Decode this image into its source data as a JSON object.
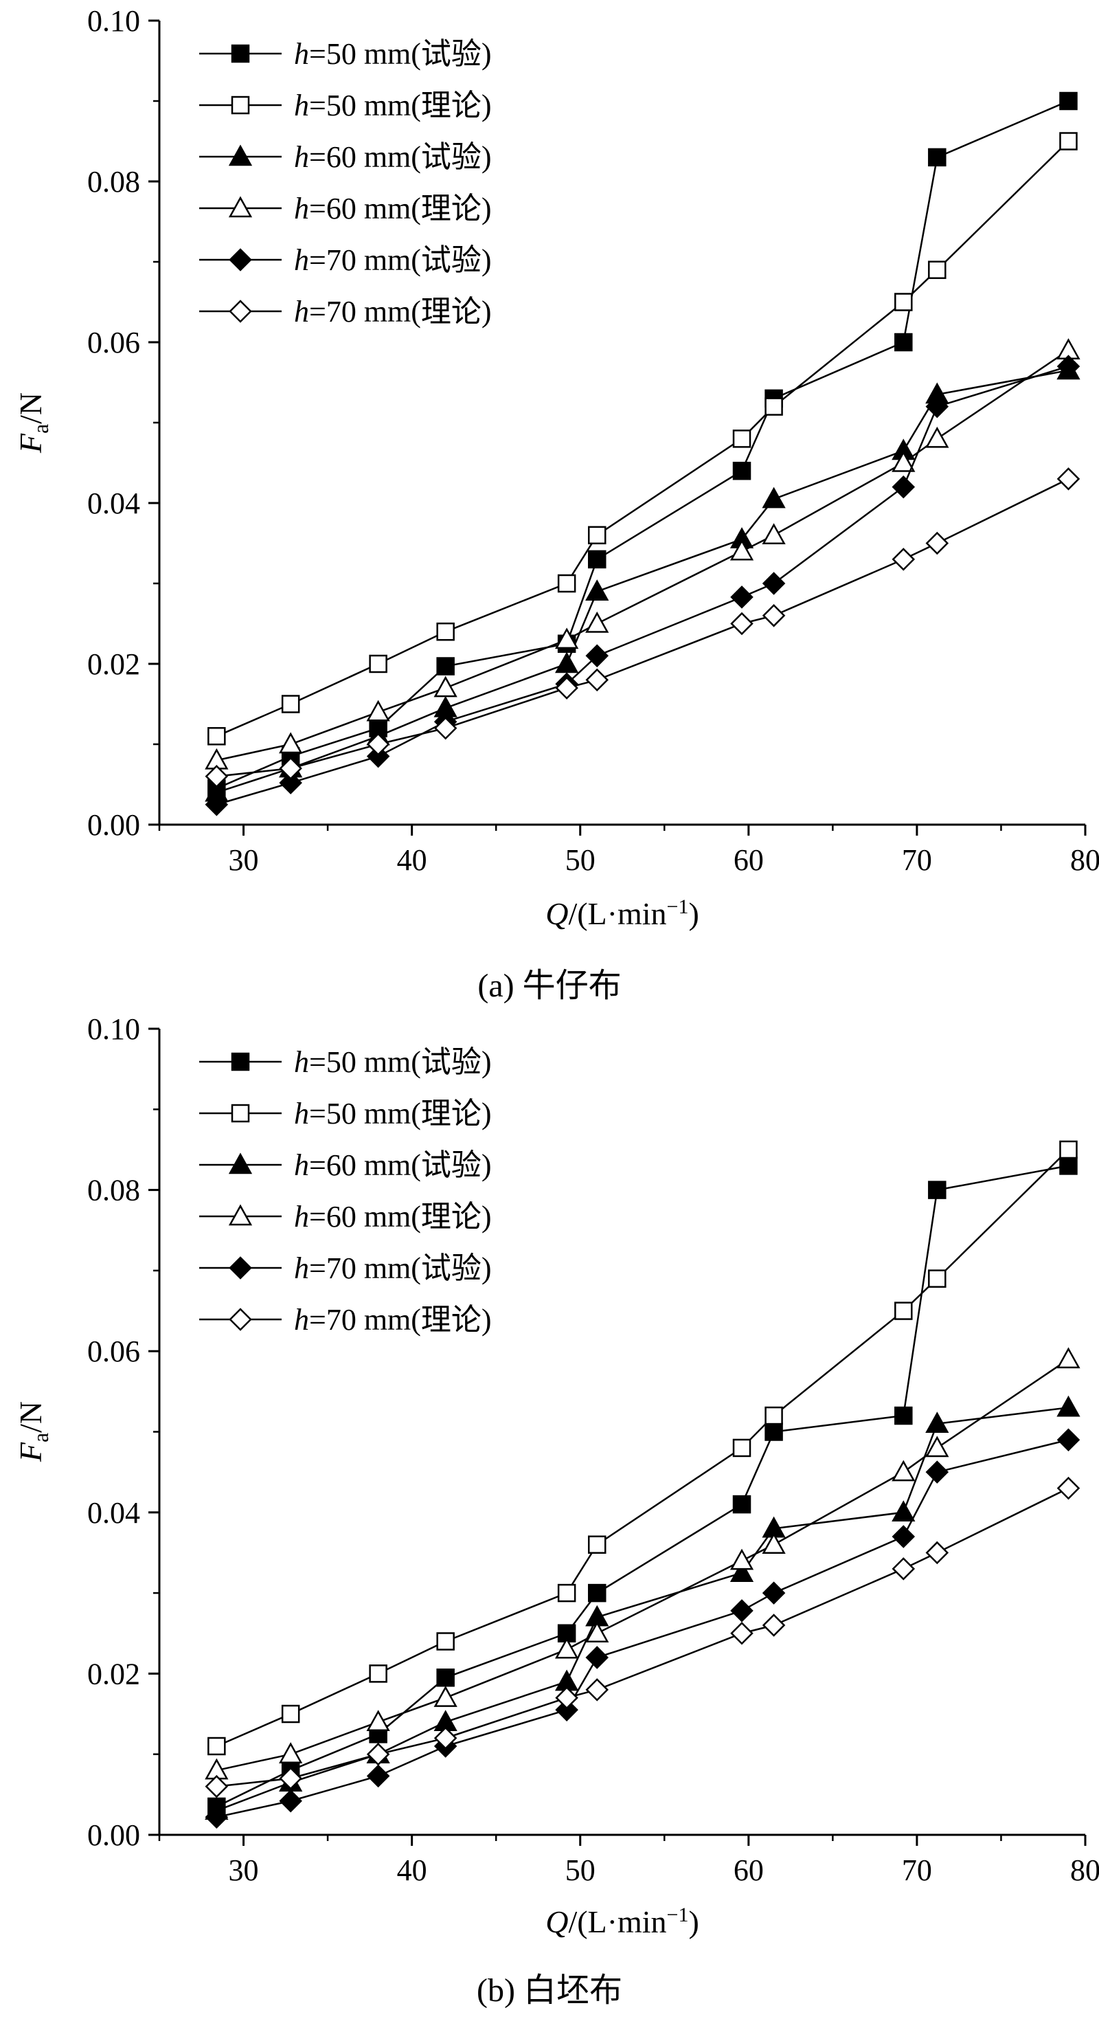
{
  "chart_data": [
    {
      "type": "line",
      "caption": "(a)  牛仔布",
      "xlabel": "Q/(L·min⁻¹)",
      "xlabel_parts": {
        "var": "Q",
        "unit_open": "/(L·min",
        "exp": "−1",
        "unit_close": ")"
      },
      "ylabel": "Fa/N",
      "ylabel_parts": {
        "var": "F",
        "sub": "a",
        "unit": "/N"
      },
      "xlim": [
        25,
        80
      ],
      "ylim": [
        0,
        0.1
      ],
      "xticks": [
        "30",
        "40",
        "50",
        "60",
        "70",
        "80"
      ],
      "xtick_values": [
        30,
        40,
        50,
        60,
        70,
        80
      ],
      "yticks": [
        "0.00",
        "0.02",
        "0.04",
        "0.06",
        "0.08",
        "0.10"
      ],
      "ytick_values": [
        0,
        0.02,
        0.04,
        0.06,
        0.08,
        0.1
      ],
      "legend_position": "top-left",
      "series": [
        {
          "name": "h=50 mm(试验)",
          "h_label": "h",
          "rest_label": "=50 mm(试验)",
          "marker": "square",
          "filled": true,
          "x": [
            28.4,
            32.8,
            38.0,
            42.0,
            49.2,
            51.0,
            59.6,
            61.5,
            69.2,
            71.2,
            79.0
          ],
          "y": [
            0.0045,
            0.0085,
            0.012,
            0.0197,
            0.0225,
            0.033,
            0.044,
            0.053,
            0.06,
            0.083,
            0.09
          ]
        },
        {
          "name": "h=50 mm(理论)",
          "h_label": "h",
          "rest_label": "=50 mm(理论)",
          "marker": "square",
          "filled": false,
          "x": [
            28.4,
            32.8,
            38.0,
            42.0,
            49.2,
            51.0,
            59.6,
            61.5,
            69.2,
            71.2,
            79.0
          ],
          "y": [
            0.011,
            0.015,
            0.02,
            0.024,
            0.03,
            0.036,
            0.048,
            0.052,
            0.065,
            0.069,
            0.085
          ]
        },
        {
          "name": "h=60 mm(试验)",
          "h_label": "h",
          "rest_label": "=60 mm(试验)",
          "marker": "triangle",
          "filled": true,
          "x": [
            28.4,
            32.8,
            38.0,
            42.0,
            49.2,
            51.0,
            59.6,
            61.5,
            69.2,
            71.2,
            79.0
          ],
          "y": [
            0.004,
            0.007,
            0.011,
            0.0145,
            0.02,
            0.029,
            0.0355,
            0.0405,
            0.0465,
            0.0535,
            0.0565
          ]
        },
        {
          "name": "h=60 mm(理论)",
          "h_label": "h",
          "rest_label": "=60 mm(理论)",
          "marker": "triangle",
          "filled": false,
          "x": [
            28.4,
            32.8,
            38.0,
            42.0,
            49.2,
            51.0,
            59.6,
            61.5,
            69.2,
            71.2,
            79.0
          ],
          "y": [
            0.008,
            0.01,
            0.014,
            0.017,
            0.023,
            0.025,
            0.034,
            0.036,
            0.045,
            0.048,
            0.059
          ]
        },
        {
          "name": "h=70 mm(试验)",
          "h_label": "h",
          "rest_label": "=70 mm(试验)",
          "marker": "diamond",
          "filled": true,
          "x": [
            28.4,
            32.8,
            38.0,
            42.0,
            49.2,
            51.0,
            59.6,
            61.5,
            69.2,
            71.2,
            79.0
          ],
          "y": [
            0.0025,
            0.0052,
            0.0085,
            0.0128,
            0.0175,
            0.021,
            0.0283,
            0.03,
            0.042,
            0.052,
            0.057
          ]
        },
        {
          "name": "h=70 mm(理论)",
          "h_label": "h",
          "rest_label": "=70 mm(理论)",
          "marker": "diamond",
          "filled": false,
          "x": [
            28.4,
            32.8,
            38.0,
            42.0,
            49.2,
            51.0,
            59.6,
            61.5,
            69.2,
            71.2,
            79.0
          ],
          "y": [
            0.006,
            0.007,
            0.01,
            0.012,
            0.017,
            0.018,
            0.025,
            0.026,
            0.033,
            0.035,
            0.043
          ]
        }
      ]
    },
    {
      "type": "line",
      "caption": "(b)  白坯布",
      "xlabel": "Q/(L·min⁻¹)",
      "xlabel_parts": {
        "var": "Q",
        "unit_open": "/(L·min",
        "exp": "−1",
        "unit_close": ")"
      },
      "ylabel": "Fa/N",
      "ylabel_parts": {
        "var": "F",
        "sub": "a",
        "unit": "/N"
      },
      "xlim": [
        25,
        80
      ],
      "ylim": [
        0,
        0.1
      ],
      "xticks": [
        "30",
        "40",
        "50",
        "60",
        "70",
        "80"
      ],
      "xtick_values": [
        30,
        40,
        50,
        60,
        70,
        80
      ],
      "yticks": [
        "0.00",
        "0.02",
        "0.04",
        "0.06",
        "0.08",
        "0.10"
      ],
      "ytick_values": [
        0,
        0.02,
        0.04,
        0.06,
        0.08,
        0.1
      ],
      "legend_position": "top-left",
      "series": [
        {
          "name": "h=50 mm(试验)",
          "h_label": "h",
          "rest_label": "=50 mm(试验)",
          "marker": "square",
          "filled": true,
          "x": [
            28.4,
            32.8,
            38.0,
            42.0,
            49.2,
            51.0,
            59.6,
            61.5,
            69.2,
            71.2,
            79.0
          ],
          "y": [
            0.0035,
            0.008,
            0.0125,
            0.0195,
            0.025,
            0.03,
            0.041,
            0.05,
            0.052,
            0.08,
            0.083
          ]
        },
        {
          "name": "h=50 mm(理论)",
          "h_label": "h",
          "rest_label": "=50 mm(理论)",
          "marker": "square",
          "filled": false,
          "x": [
            28.4,
            32.8,
            38.0,
            42.0,
            49.2,
            51.0,
            59.6,
            61.5,
            69.2,
            71.2,
            79.0
          ],
          "y": [
            0.011,
            0.015,
            0.02,
            0.024,
            0.03,
            0.036,
            0.048,
            0.052,
            0.065,
            0.069,
            0.085
          ]
        },
        {
          "name": "h=60 mm(试验)",
          "h_label": "h",
          "rest_label": "=60 mm(试验)",
          "marker": "triangle",
          "filled": true,
          "x": [
            28.4,
            32.8,
            38.0,
            42.0,
            49.2,
            51.0,
            59.6,
            61.5,
            69.2,
            71.2,
            79.0
          ],
          "y": [
            0.003,
            0.0065,
            0.01,
            0.014,
            0.019,
            0.027,
            0.0325,
            0.038,
            0.04,
            0.051,
            0.053
          ]
        },
        {
          "name": "h=60 mm(理论)",
          "h_label": "h",
          "rest_label": "=60 mm(理论)",
          "marker": "triangle",
          "filled": false,
          "x": [
            28.4,
            32.8,
            38.0,
            42.0,
            49.2,
            51.0,
            59.6,
            61.5,
            69.2,
            71.2,
            79.0
          ],
          "y": [
            0.008,
            0.01,
            0.014,
            0.017,
            0.023,
            0.025,
            0.034,
            0.036,
            0.045,
            0.048,
            0.059
          ]
        },
        {
          "name": "h=70 mm(试验)",
          "h_label": "h",
          "rest_label": "=70 mm(试验)",
          "marker": "diamond",
          "filled": true,
          "x": [
            28.4,
            32.8,
            38.0,
            42.0,
            49.2,
            51.0,
            59.6,
            61.5,
            69.2,
            71.2,
            79.0
          ],
          "y": [
            0.0022,
            0.0042,
            0.0073,
            0.011,
            0.0155,
            0.022,
            0.0278,
            0.03,
            0.037,
            0.045,
            0.049
          ]
        },
        {
          "name": "h=70 mm(理论)",
          "h_label": "h",
          "rest_label": "=70 mm(理论)",
          "marker": "diamond",
          "filled": false,
          "x": [
            28.4,
            32.8,
            38.0,
            42.0,
            49.2,
            51.0,
            59.6,
            61.5,
            69.2,
            71.2,
            79.0
          ],
          "y": [
            0.006,
            0.007,
            0.01,
            0.012,
            0.017,
            0.018,
            0.025,
            0.026,
            0.033,
            0.035,
            0.043
          ]
        }
      ]
    }
  ]
}
